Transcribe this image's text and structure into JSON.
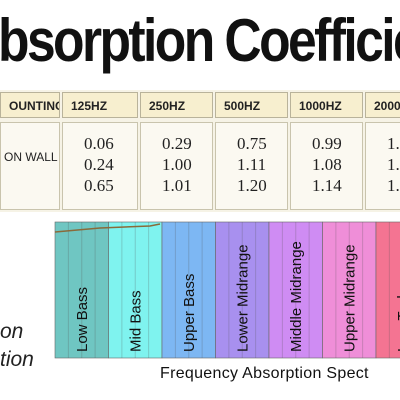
{
  "title": "bsorption Coefficien",
  "table": {
    "columns": [
      "OUNTING",
      "125HZ",
      "250HZ",
      "500HZ",
      "1000HZ",
      "2000"
    ],
    "row_label": "ON WALL",
    "values": [
      [
        "0.06",
        "0.29",
        "0.75",
        "0.99",
        "1."
      ],
      [
        "0.24",
        "1.00",
        "1.11",
        "1.08",
        "1."
      ],
      [
        "0.65",
        "1.01",
        "1.20",
        "1.14",
        "1."
      ]
    ]
  },
  "bands": [
    "Low Bass",
    "Mid Bass",
    "Upper Bass",
    "Lower Midrange",
    "Middle Midrange",
    "Upper Midrange",
    "Low Treb"
  ],
  "side_text": [
    "on",
    "tion"
  ],
  "caption": "Frequency Absorption Spect"
}
